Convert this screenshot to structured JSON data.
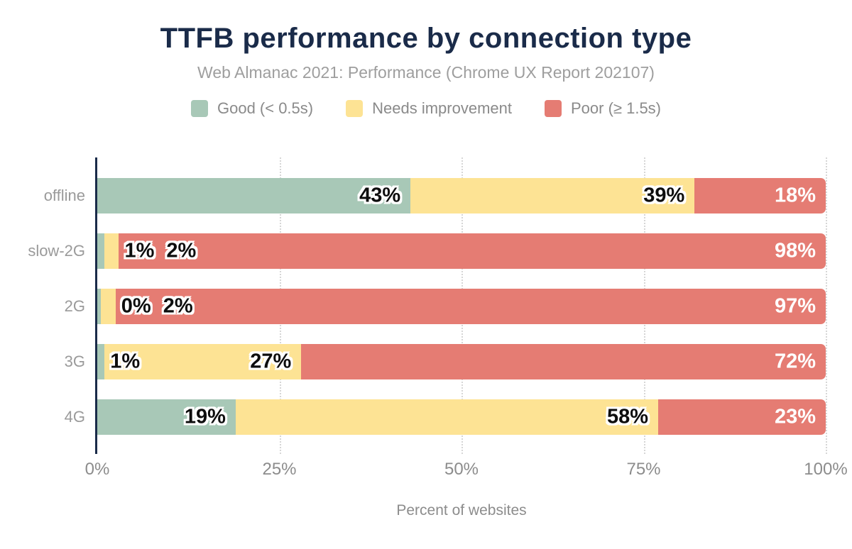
{
  "chart_data": {
    "type": "bar",
    "orientation": "horizontal",
    "stacked": true,
    "title": "TTFB performance by connection type",
    "subtitle": "Web Almanac 2021: Performance (Chrome UX Report 202107)",
    "xlabel": "Percent of websites",
    "categories": [
      "offline",
      "slow-2G",
      "2G",
      "3G",
      "4G"
    ],
    "series": [
      {
        "key": "good",
        "name": "Good (< 0.5s)",
        "color": "#a8c8b7",
        "values": [
          43,
          1,
          0,
          1,
          19
        ]
      },
      {
        "key": "needs-improvement",
        "name": "Needs improvement",
        "color": "#fde394",
        "values": [
          39,
          2,
          2,
          27,
          58
        ]
      },
      {
        "key": "poor",
        "name": "Poor (≥ 1.5s)",
        "color": "#e57c73",
        "values": [
          18,
          98,
          97,
          72,
          23
        ]
      }
    ],
    "value_label_suffix": "%",
    "x_ticks": [
      {
        "label": "0%",
        "value": 0
      },
      {
        "label": "25%",
        "value": 25
      },
      {
        "label": "50%",
        "value": 50
      },
      {
        "label": "75%",
        "value": 75
      },
      {
        "label": "100%",
        "value": 100
      }
    ],
    "xlim": [
      0,
      100
    ],
    "grid": "vertical-dotted",
    "legend_position": "top"
  },
  "colors": {
    "title": "#1a2b49",
    "subtitle": "#9e9e9e",
    "axis_line": "#1a2b49",
    "axis_text": "#8c8c8c",
    "category_text": "#9a9a9a",
    "gridline": "#d6d6d6",
    "value_label_dark": "#0d0d0d",
    "value_label_light": "#ffffff",
    "background": "#ffffff"
  }
}
